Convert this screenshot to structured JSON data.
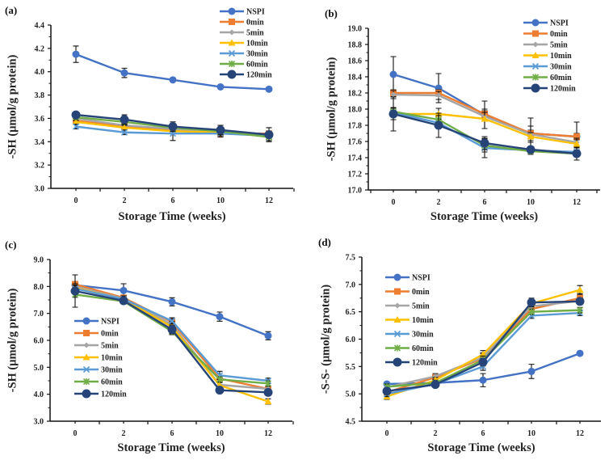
{
  "figure": {
    "series_styles": [
      {
        "name": "NSPI",
        "color": "#4472C4",
        "marker": "circle"
      },
      {
        "name": "0min",
        "color": "#ED7D31",
        "marker": "square"
      },
      {
        "name": "5min",
        "color": "#A5A5A5",
        "marker": "diamond"
      },
      {
        "name": "10min",
        "color": "#FFC000",
        "marker": "triangle"
      },
      {
        "name": "30min",
        "color": "#5B9BD5",
        "marker": "x"
      },
      {
        "name": "60min",
        "color": "#70AD47",
        "marker": "star"
      },
      {
        "name": "120min",
        "color": "#264478",
        "marker": "circle-large"
      }
    ]
  },
  "chart_data": [
    {
      "panel": "(a)",
      "type": "line",
      "title": "",
      "xlabel": "Storage Time (weeks)",
      "ylabel": "-SH (μmol/g protein)",
      "categories": [
        "0",
        "2",
        "6",
        "10",
        "12"
      ],
      "ylim": [
        3.0,
        4.4
      ],
      "yticks": [
        "3.0",
        "3.2",
        "3.4",
        "3.6",
        "3.8",
        "4.0",
        "4.2",
        "4.4"
      ],
      "legend": "top-right",
      "grid": false,
      "series": [
        {
          "name": "NSPI",
          "values": [
            4.15,
            3.99,
            3.93,
            3.87,
            3.85
          ],
          "errors": [
            0.07,
            0.04,
            0.01,
            0.01,
            0.01
          ]
        },
        {
          "name": "0min",
          "values": [
            3.58,
            3.53,
            3.5,
            3.47,
            3.47
          ],
          "errors": [
            0.02,
            0.02,
            0.02,
            0.03,
            0.02
          ]
        },
        {
          "name": "5min",
          "values": [
            3.6,
            3.54,
            3.51,
            3.48,
            3.46
          ],
          "errors": [
            0.02,
            0.02,
            0.02,
            0.02,
            0.02
          ]
        },
        {
          "name": "10min",
          "values": [
            3.57,
            3.52,
            3.49,
            3.48,
            3.46
          ],
          "errors": [
            0.02,
            0.02,
            0.02,
            0.02,
            0.02
          ]
        },
        {
          "name": "30min",
          "values": [
            3.53,
            3.48,
            3.47,
            3.47,
            3.45
          ],
          "errors": [
            0.02,
            0.02,
            0.06,
            0.02,
            0.02
          ]
        },
        {
          "name": "60min",
          "values": [
            3.61,
            3.57,
            3.52,
            3.49,
            3.44
          ],
          "errors": [
            0.02,
            0.02,
            0.02,
            0.02,
            0.03
          ]
        },
        {
          "name": "120min",
          "values": [
            3.63,
            3.59,
            3.53,
            3.5,
            3.46
          ],
          "errors": [
            0.02,
            0.04,
            0.04,
            0.04,
            0.06
          ]
        }
      ]
    },
    {
      "panel": "(b)",
      "type": "line",
      "title": "",
      "xlabel": "Storage Time (weeks)",
      "ylabel": "-SH (μmol/g protein)",
      "categories": [
        "0",
        "2",
        "6",
        "10",
        "12"
      ],
      "ylim": [
        17.0,
        19.0
      ],
      "yticks": [
        "17.0",
        "17.2",
        "17.4",
        "17.6",
        "17.8",
        "18.0",
        "18.2",
        "18.4",
        "18.6",
        "18.8",
        "19.0"
      ],
      "legend": "top-right",
      "grid": false,
      "series": [
        {
          "name": "NSPI",
          "values": [
            18.43,
            18.26,
            17.93,
            17.7,
            17.66
          ],
          "errors": [
            0.22,
            0.18,
            0.17,
            0.19,
            0.18
          ]
        },
        {
          "name": "0min",
          "values": [
            18.2,
            18.2,
            17.94,
            17.7,
            17.66
          ],
          "errors": [
            0.04,
            0.04,
            0.04,
            0.04,
            0.04
          ]
        },
        {
          "name": "5min",
          "values": [
            18.18,
            18.17,
            17.91,
            17.69,
            17.59
          ],
          "errors": [
            0.05,
            0.05,
            0.05,
            0.1,
            0.05
          ]
        },
        {
          "name": "10min",
          "values": [
            17.94,
            17.94,
            17.88,
            17.66,
            17.57
          ],
          "errors": [
            0.07,
            0.07,
            0.12,
            0.05,
            0.05
          ]
        },
        {
          "name": "30min",
          "values": [
            17.96,
            17.83,
            17.52,
            17.49,
            17.47
          ],
          "errors": [
            0.05,
            0.05,
            0.12,
            0.05,
            0.05
          ]
        },
        {
          "name": "60min",
          "values": [
            17.97,
            17.87,
            17.55,
            17.48,
            17.45
          ],
          "errors": [
            0.05,
            0.05,
            0.08,
            0.04,
            0.04
          ]
        },
        {
          "name": "120min",
          "values": [
            17.94,
            17.8,
            17.58,
            17.5,
            17.45
          ],
          "errors": [
            0.21,
            0.15,
            0.08,
            0.04,
            0.08
          ]
        }
      ]
    },
    {
      "panel": "(c)",
      "type": "line",
      "title": "",
      "xlabel": "Storage Time (weeks)",
      "ylabel": "-SH (μmol/g protein)",
      "categories": [
        "0",
        "2",
        "6",
        "10",
        "12"
      ],
      "ylim": [
        3.0,
        9.0
      ],
      "yticks": [
        "3.0",
        "4.0",
        "5.0",
        "6.0",
        "7.0",
        "8.0",
        "9.0"
      ],
      "legend": "center-left",
      "grid": false,
      "series": [
        {
          "name": "NSPI",
          "values": [
            8.05,
            7.85,
            7.43,
            6.88,
            6.17
          ],
          "errors": [
            0.1,
            0.25,
            0.15,
            0.17,
            0.15
          ]
        },
        {
          "name": "0min",
          "values": [
            8.08,
            7.58,
            6.68,
            4.58,
            4.2
          ],
          "errors": [
            0.1,
            0.1,
            0.12,
            0.1,
            0.1
          ]
        },
        {
          "name": "5min",
          "values": [
            8.0,
            7.55,
            6.58,
            4.35,
            4.2
          ],
          "errors": [
            0.1,
            0.1,
            0.12,
            0.1,
            0.1
          ]
        },
        {
          "name": "10min",
          "values": [
            7.95,
            7.52,
            6.5,
            4.33,
            3.73
          ],
          "errors": [
            0.1,
            0.1,
            0.12,
            0.1,
            0.1
          ]
        },
        {
          "name": "30min",
          "values": [
            7.92,
            7.53,
            6.72,
            4.7,
            4.5
          ],
          "errors": [
            0.1,
            0.1,
            0.12,
            0.15,
            0.1
          ]
        },
        {
          "name": "60min",
          "values": [
            7.7,
            7.45,
            6.33,
            4.55,
            4.4
          ],
          "errors": [
            0.1,
            0.1,
            0.12,
            0.1,
            0.1
          ]
        },
        {
          "name": "120min",
          "values": [
            7.83,
            7.47,
            6.4,
            4.15,
            4.07
          ],
          "errors": [
            0.6,
            0.1,
            0.15,
            0.1,
            0.1
          ]
        }
      ]
    },
    {
      "panel": "(d)",
      "type": "line",
      "title": "",
      "xlabel": "Storage Time (weeks)",
      "ylabel": "-S-S- (μmol/g protein)",
      "categories": [
        "0",
        "2",
        "6",
        "10",
        "12"
      ],
      "ylim": [
        4.5,
        7.5
      ],
      "yticks": [
        "4.5",
        "5.0",
        "5.5",
        "6.0",
        "6.5",
        "7.0",
        "7.5"
      ],
      "legend": "top-left",
      "grid": false,
      "series": [
        {
          "name": "NSPI",
          "values": [
            5.18,
            5.2,
            5.25,
            5.41,
            5.74
          ],
          "errors": [
            0.03,
            0.03,
            0.12,
            0.13,
            0.02
          ]
        },
        {
          "name": "0min",
          "values": [
            5.03,
            5.3,
            5.65,
            6.55,
            6.75
          ],
          "errors": [
            0.05,
            0.05,
            0.08,
            0.05,
            0.08
          ]
        },
        {
          "name": "5min",
          "values": [
            5.12,
            5.32,
            5.67,
            6.6,
            6.7
          ],
          "errors": [
            0.05,
            0.05,
            0.08,
            0.05,
            0.05
          ]
        },
        {
          "name": "10min",
          "values": [
            4.95,
            5.25,
            5.72,
            6.65,
            6.9
          ],
          "errors": [
            0.05,
            0.05,
            0.07,
            0.05,
            0.08
          ]
        },
        {
          "name": "30min",
          "values": [
            5.0,
            5.18,
            5.5,
            6.43,
            6.48
          ],
          "errors": [
            0.05,
            0.05,
            0.07,
            0.05,
            0.05
          ]
        },
        {
          "name": "60min",
          "values": [
            5.13,
            5.2,
            5.62,
            6.5,
            6.53
          ],
          "errors": [
            0.05,
            0.05,
            0.07,
            0.05,
            0.05
          ]
        },
        {
          "name": "120min",
          "values": [
            5.05,
            5.17,
            5.58,
            6.67,
            6.69
          ],
          "errors": [
            0.05,
            0.05,
            0.07,
            0.08,
            0.05
          ]
        }
      ]
    }
  ]
}
